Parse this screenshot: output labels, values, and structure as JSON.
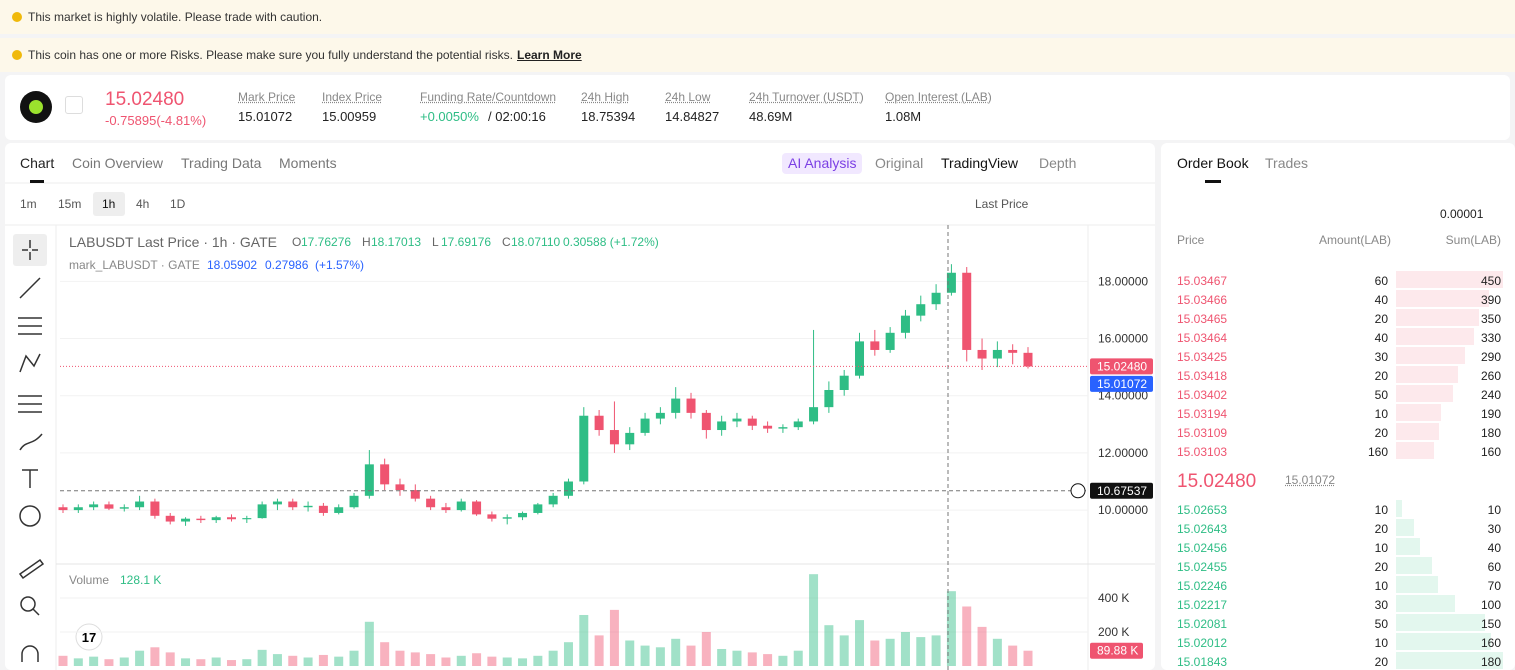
{
  "banners": [
    "This market is highly volatile. Please trade with caution.",
    "This coin has one or more Risks. Please make sure you fully understand the potential risks."
  ],
  "learn_more": "Learn More",
  "header": {
    "price": "15.02480",
    "change": "-0.75895(-4.81%)",
    "stats": [
      {
        "label": "Mark Price",
        "value": "15.01072"
      },
      {
        "label": "Index Price",
        "value": "15.00959"
      },
      {
        "label": "Funding Rate/Countdown",
        "value": "+0.0050%",
        "extra": "/ 02:00:16"
      },
      {
        "label": "24h High",
        "value": "18.75394"
      },
      {
        "label": "24h Low",
        "value": "14.84827"
      },
      {
        "label": "24h Turnover (USDT)",
        "value": "48.69M"
      },
      {
        "label": "Open Interest (LAB)",
        "value": "1.08M"
      }
    ]
  },
  "tabs": [
    "Chart",
    "Coin Overview",
    "Trading Data",
    "Moments"
  ],
  "views": [
    "AI Analysis",
    "Original",
    "TradingView",
    "Depth"
  ],
  "intervals": [
    "1m",
    "15m",
    "1h",
    "4h",
    "1D"
  ],
  "price_type": "Last Price",
  "chart_data": {
    "type": "candlestick",
    "title": "LABUSDT Last Price · 1h · GATE",
    "ohlc": [
      {
        "k": "O",
        "v": "17.76276"
      },
      {
        "k": "H",
        "v": "18.17013"
      },
      {
        "k": "L",
        "v": "17.69176"
      },
      {
        "k": "C",
        "v": "18.07110"
      }
    ],
    "change": "0.30588 (+1.72%)",
    "mark_line": {
      "name": "mark_LABUSDT · GATE",
      "values": [
        "18.05902",
        "0.27986",
        "(+1.57%)"
      ]
    },
    "up_color": "#2ebd85",
    "down_color": "#ef5470",
    "candles": [
      [
        10.1,
        10.2,
        9.9,
        10.0
      ],
      [
        10.0,
        10.2,
        9.9,
        10.1
      ],
      [
        10.1,
        10.3,
        10.0,
        10.2
      ],
      [
        10.2,
        10.3,
        10.0,
        10.05
      ],
      [
        10.05,
        10.2,
        9.95,
        10.1
      ],
      [
        10.1,
        10.5,
        10.0,
        10.3
      ],
      [
        10.3,
        10.4,
        9.7,
        9.8
      ],
      [
        9.8,
        9.9,
        9.5,
        9.6
      ],
      [
        9.6,
        9.75,
        9.45,
        9.7
      ],
      [
        9.7,
        9.8,
        9.55,
        9.65
      ],
      [
        9.65,
        9.8,
        9.55,
        9.75
      ],
      [
        9.75,
        9.85,
        9.6,
        9.68
      ],
      [
        9.68,
        9.8,
        9.55,
        9.72
      ],
      [
        9.72,
        10.3,
        9.7,
        10.2
      ],
      [
        10.2,
        10.4,
        10.0,
        10.3
      ],
      [
        10.3,
        10.4,
        10.0,
        10.1
      ],
      [
        10.1,
        10.3,
        9.95,
        10.15
      ],
      [
        10.15,
        10.25,
        9.8,
        9.9
      ],
      [
        9.9,
        10.2,
        9.85,
        10.1
      ],
      [
        10.1,
        10.6,
        10.05,
        10.5
      ],
      [
        10.5,
        12.1,
        10.4,
        11.6
      ],
      [
        11.6,
        11.8,
        10.7,
        10.9
      ],
      [
        10.9,
        11.1,
        10.5,
        10.7
      ],
      [
        10.7,
        10.9,
        10.3,
        10.4
      ],
      [
        10.4,
        10.5,
        10.0,
        10.1
      ],
      [
        10.1,
        10.25,
        9.9,
        10.0
      ],
      [
        10.0,
        10.4,
        9.95,
        10.3
      ],
      [
        10.3,
        10.35,
        9.8,
        9.85
      ],
      [
        9.85,
        9.95,
        9.6,
        9.7
      ],
      [
        9.7,
        9.85,
        9.5,
        9.75
      ],
      [
        9.75,
        9.95,
        9.65,
        9.9
      ],
      [
        9.9,
        10.25,
        9.85,
        10.2
      ],
      [
        10.2,
        10.6,
        10.1,
        10.5
      ],
      [
        10.5,
        11.1,
        10.4,
        11.0
      ],
      [
        11.0,
        13.6,
        10.9,
        13.3
      ],
      [
        13.3,
        13.5,
        12.6,
        12.8
      ],
      [
        12.8,
        13.8,
        12.0,
        12.3
      ],
      [
        12.3,
        12.9,
        12.1,
        12.7
      ],
      [
        12.7,
        13.4,
        12.6,
        13.2
      ],
      [
        13.2,
        13.6,
        13.0,
        13.4
      ],
      [
        13.4,
        14.3,
        13.2,
        13.9
      ],
      [
        13.9,
        14.1,
        13.2,
        13.4
      ],
      [
        13.4,
        13.5,
        12.5,
        12.8
      ],
      [
        12.8,
        13.3,
        12.6,
        13.1
      ],
      [
        13.1,
        13.4,
        12.9,
        13.2
      ],
      [
        13.2,
        13.3,
        12.8,
        12.95
      ],
      [
        12.95,
        13.1,
        12.7,
        12.85
      ],
      [
        12.85,
        13.0,
        12.7,
        12.9
      ],
      [
        12.9,
        13.2,
        12.8,
        13.1
      ],
      [
        13.1,
        16.3,
        13.0,
        13.6
      ],
      [
        13.6,
        14.5,
        13.4,
        14.2
      ],
      [
        14.2,
        14.9,
        14.0,
        14.7
      ],
      [
        14.7,
        16.2,
        14.6,
        15.9
      ],
      [
        15.9,
        16.3,
        15.4,
        15.6
      ],
      [
        15.6,
        16.4,
        15.5,
        16.2
      ],
      [
        16.2,
        17.0,
        16.0,
        16.8
      ],
      [
        16.8,
        17.5,
        16.6,
        17.2
      ],
      [
        17.2,
        17.9,
        17.0,
        17.6
      ],
      [
        17.6,
        18.6,
        17.5,
        18.3
      ],
      [
        18.3,
        18.5,
        15.2,
        15.6
      ],
      [
        15.6,
        16.0,
        14.9,
        15.3
      ],
      [
        15.3,
        15.9,
        15.0,
        15.6
      ],
      [
        15.6,
        15.8,
        15.1,
        15.5
      ],
      [
        15.5,
        15.7,
        14.95,
        15.0248
      ]
    ],
    "ylim": [
      8.15,
      19.97
    ],
    "yticks": [
      {
        "value": 10,
        "label": "10.00000"
      },
      {
        "value": 12,
        "label": "12.00000"
      },
      {
        "value": 14,
        "label": "14.00000"
      },
      {
        "value": 16,
        "label": "16.00000"
      },
      {
        "value": 18,
        "label": "18.00000"
      }
    ],
    "last_price": {
      "value": 15.0248,
      "label": "15.02480"
    },
    "mark_price": {
      "value": 15.01072,
      "label": "15.01072"
    },
    "crosshair": {
      "value": 10.67537,
      "label": "10.67537"
    },
    "volume": {
      "title": "Volume",
      "current": "128.1 K",
      "values": [
        60000,
        45000,
        55000,
        40000,
        50000,
        90000,
        110000,
        80000,
        45000,
        40000,
        50000,
        35000,
        40000,
        95000,
        70000,
        60000,
        50000,
        65000,
        55000,
        90000,
        260000,
        140000,
        90000,
        80000,
        70000,
        50000,
        60000,
        75000,
        55000,
        50000,
        45000,
        60000,
        90000,
        140000,
        300000,
        180000,
        330000,
        150000,
        120000,
        110000,
        160000,
        120000,
        200000,
        100000,
        90000,
        80000,
        70000,
        60000,
        90000,
        540000,
        240000,
        180000,
        270000,
        150000,
        160000,
        200000,
        170000,
        180000,
        440000,
        350000,
        230000,
        160000,
        120000,
        89880
      ],
      "ylim": [
        0,
        594000
      ],
      "yticks": [
        {
          "value": 200000,
          "label": "200 K"
        },
        {
          "value": 400000,
          "label": "400 K"
        }
      ],
      "last": {
        "value": 89880,
        "label": "89.88 K"
      }
    }
  },
  "order_book": {
    "tabs": [
      "Order Book",
      "Trades"
    ],
    "precision": "0.00001",
    "columns": [
      "Price",
      "Amount(LAB)",
      "Sum(LAB)"
    ],
    "asks": [
      [
        "15.03467",
        60,
        450
      ],
      [
        "15.03466",
        40,
        390
      ],
      [
        "15.03465",
        20,
        350
      ],
      [
        "15.03464",
        40,
        330
      ],
      [
        "15.03425",
        30,
        290
      ],
      [
        "15.03418",
        20,
        260
      ],
      [
        "15.03402",
        50,
        240
      ],
      [
        "15.03194",
        10,
        190
      ],
      [
        "15.03109",
        20,
        180
      ],
      [
        "15.03103",
        160,
        160
      ]
    ],
    "mid_price": "15.02480",
    "mark": "15.01072",
    "bids": [
      [
        "15.02653",
        10,
        10
      ],
      [
        "15.02643",
        20,
        30
      ],
      [
        "15.02456",
        10,
        40
      ],
      [
        "15.02455",
        20,
        60
      ],
      [
        "15.02246",
        10,
        70
      ],
      [
        "15.02217",
        30,
        100
      ],
      [
        "15.02081",
        50,
        150
      ],
      [
        "15.02012",
        10,
        160
      ],
      [
        "15.01843",
        20,
        180
      ]
    ]
  }
}
